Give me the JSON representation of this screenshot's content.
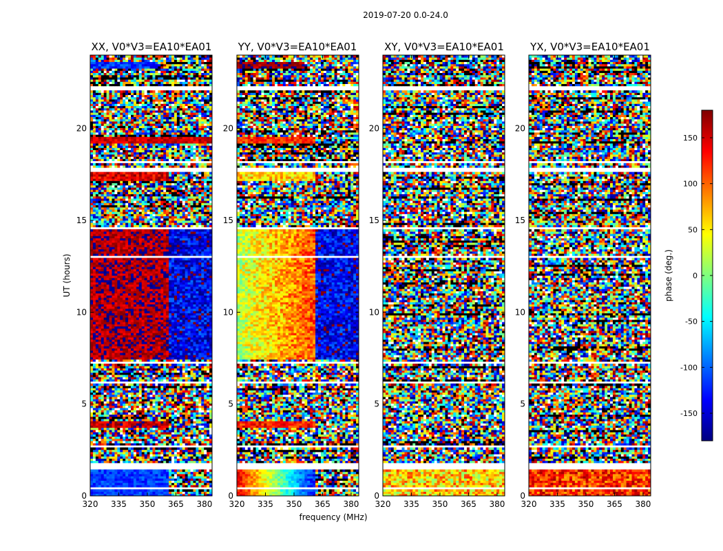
{
  "chart_data": {
    "type": "heatmap",
    "suptitle": "2019-07-20 0.0-24.0",
    "xlabel": "frequency (MHz)",
    "ylabel": "UT (hours)",
    "xlim": [
      320,
      384
    ],
    "ylim": [
      0,
      24
    ],
    "xticks": [
      320,
      335,
      350,
      365,
      380
    ],
    "yticks": [
      0,
      5,
      10,
      15,
      20
    ],
    "colorbar": {
      "label": "phase (deg.)",
      "range": [
        -180,
        180
      ],
      "ticks": [
        150,
        100,
        50,
        0,
        -50,
        -100,
        -150
      ],
      "colormap": [
        "#00007f",
        "#0000ff",
        "#007fff",
        "#00ffff",
        "#7fff7f",
        "#ffff00",
        "#ff7f00",
        "#ff0000",
        "#7f0000"
      ]
    },
    "flagged_bands_hours": [
      [
        0.35,
        0.45
      ],
      [
        1.45,
        1.75
      ],
      [
        2.6,
        2.7
      ],
      [
        3.2,
        3.3
      ],
      [
        6.1,
        6.25
      ],
      [
        7.2,
        7.35
      ],
      [
        13.0,
        13.05
      ],
      [
        14.55,
        14.7
      ],
      [
        17.65,
        17.85
      ],
      [
        18.1,
        18.25
      ],
      [
        22.1,
        22.3
      ]
    ],
    "panels": [
      {
        "title": "XX, V0*V3=EA10*EA01",
        "structure": [
          {
            "t0": 0.0,
            "t1": 1.45,
            "f0": 320,
            "f1": 361,
            "phase": -115,
            "jitter": 25
          },
          {
            "t0": 7.5,
            "t1": 14.5,
            "f0": 320,
            "f1": 361,
            "phase": 165,
            "jitter": 30
          },
          {
            "t0": 7.5,
            "t1": 14.5,
            "f0": 361,
            "f1": 384,
            "phase": -140,
            "jitter": 45
          },
          {
            "t0": 19.2,
            "t1": 19.6,
            "f0": 320,
            "f1": 384,
            "phase": 150,
            "jitter": 25
          },
          {
            "t0": 17.2,
            "t1": 17.6,
            "f0": 320,
            "f1": 361,
            "phase": 145,
            "jitter": 35
          },
          {
            "t0": 3.7,
            "t1": 4.1,
            "f0": 320,
            "f1": 361,
            "phase": 155,
            "jitter": 35
          },
          {
            "t0": 23.3,
            "t1": 23.65,
            "f0": 320,
            "f1": 355,
            "phase": -120,
            "jitter": 30
          }
        ]
      },
      {
        "title": "YY, V0*V3=EA10*EA01",
        "structure": [
          {
            "t0": 0.0,
            "t1": 1.45,
            "f0": 320,
            "f1": 361,
            "phase": -80,
            "gradient": [
              140,
              -130
            ],
            "jitter": 25
          },
          {
            "t0": 7.5,
            "t1": 14.5,
            "f0": 320,
            "f1": 361,
            "phase": 60,
            "gradient": [
              20,
              110
            ],
            "jitter": 40
          },
          {
            "t0": 7.5,
            "t1": 14.5,
            "f0": 361,
            "f1": 384,
            "phase": -140,
            "jitter": 45
          },
          {
            "t0": 19.2,
            "t1": 19.6,
            "f0": 320,
            "f1": 361,
            "phase": 120,
            "jitter": 30
          },
          {
            "t0": 17.2,
            "t1": 17.6,
            "f0": 320,
            "f1": 361,
            "phase": 60,
            "jitter": 40
          },
          {
            "t0": 3.7,
            "t1": 4.1,
            "f0": 320,
            "f1": 361,
            "phase": 130,
            "jitter": 35
          },
          {
            "t0": 23.3,
            "t1": 23.65,
            "f0": 320,
            "f1": 355,
            "phase": 170,
            "jitter": 25
          }
        ]
      },
      {
        "title": "XY, V0*V3=EA10*EA01",
        "structure": [
          {
            "t0": 0.0,
            "t1": 1.45,
            "f0": 320,
            "f1": 384,
            "phase": 60,
            "jitter": 60
          }
        ]
      },
      {
        "title": "YX, V0*V3=EA10*EA01",
        "structure": [
          {
            "t0": 0.0,
            "t1": 1.45,
            "f0": 320,
            "f1": 384,
            "phase": 120,
            "jitter": 50
          }
        ]
      }
    ]
  }
}
